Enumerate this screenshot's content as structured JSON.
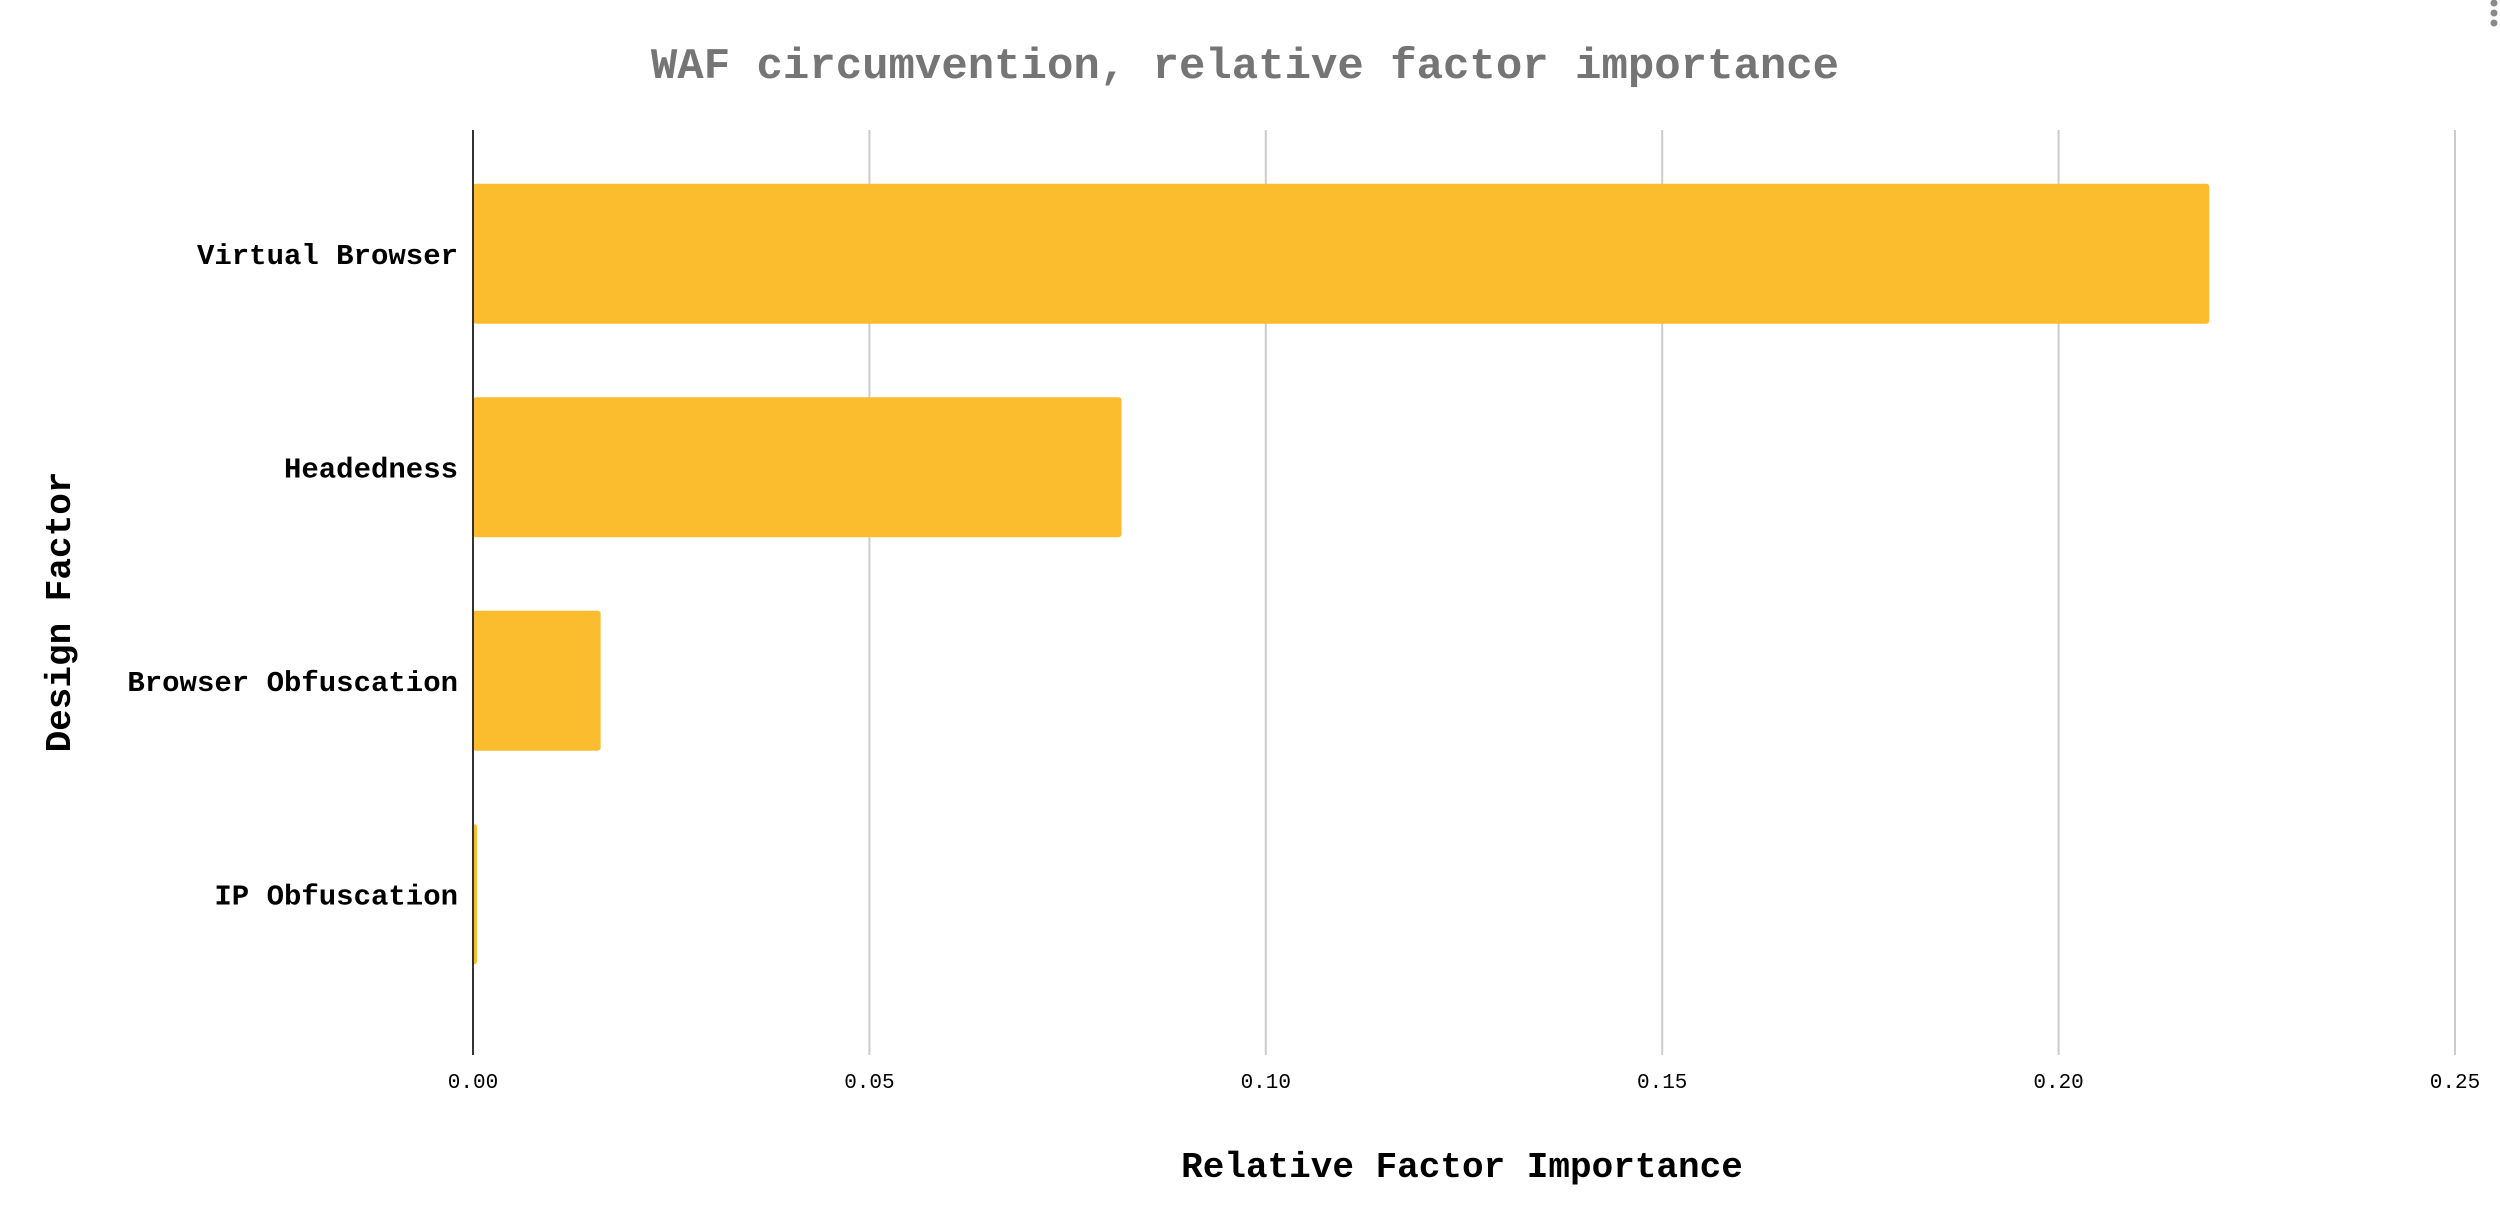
{
  "chart_data": {
    "type": "bar",
    "orientation": "horizontal",
    "title": "WAF circumvention, relative factor importance",
    "xlabel": "Relative Factor Importance",
    "ylabel": "Design Factor",
    "categories": [
      "Virtual Browser",
      "Headedness",
      "Browser Obfuscation",
      "IP Obfuscation"
    ],
    "values": [
      0.219,
      0.0818,
      0.0161,
      0.0005
    ],
    "xlim": [
      0,
      0.25
    ],
    "xticks": [
      "0.00",
      "0.05",
      "0.10",
      "0.15",
      "0.20",
      "0.25"
    ],
    "grid": true,
    "legend": "none"
  },
  "colors": {
    "bar": "#FBBC2E",
    "title": "#757575",
    "text": "#000000",
    "grid": "#cccccc"
  },
  "icons": {
    "menu": "kebab-menu-icon"
  }
}
